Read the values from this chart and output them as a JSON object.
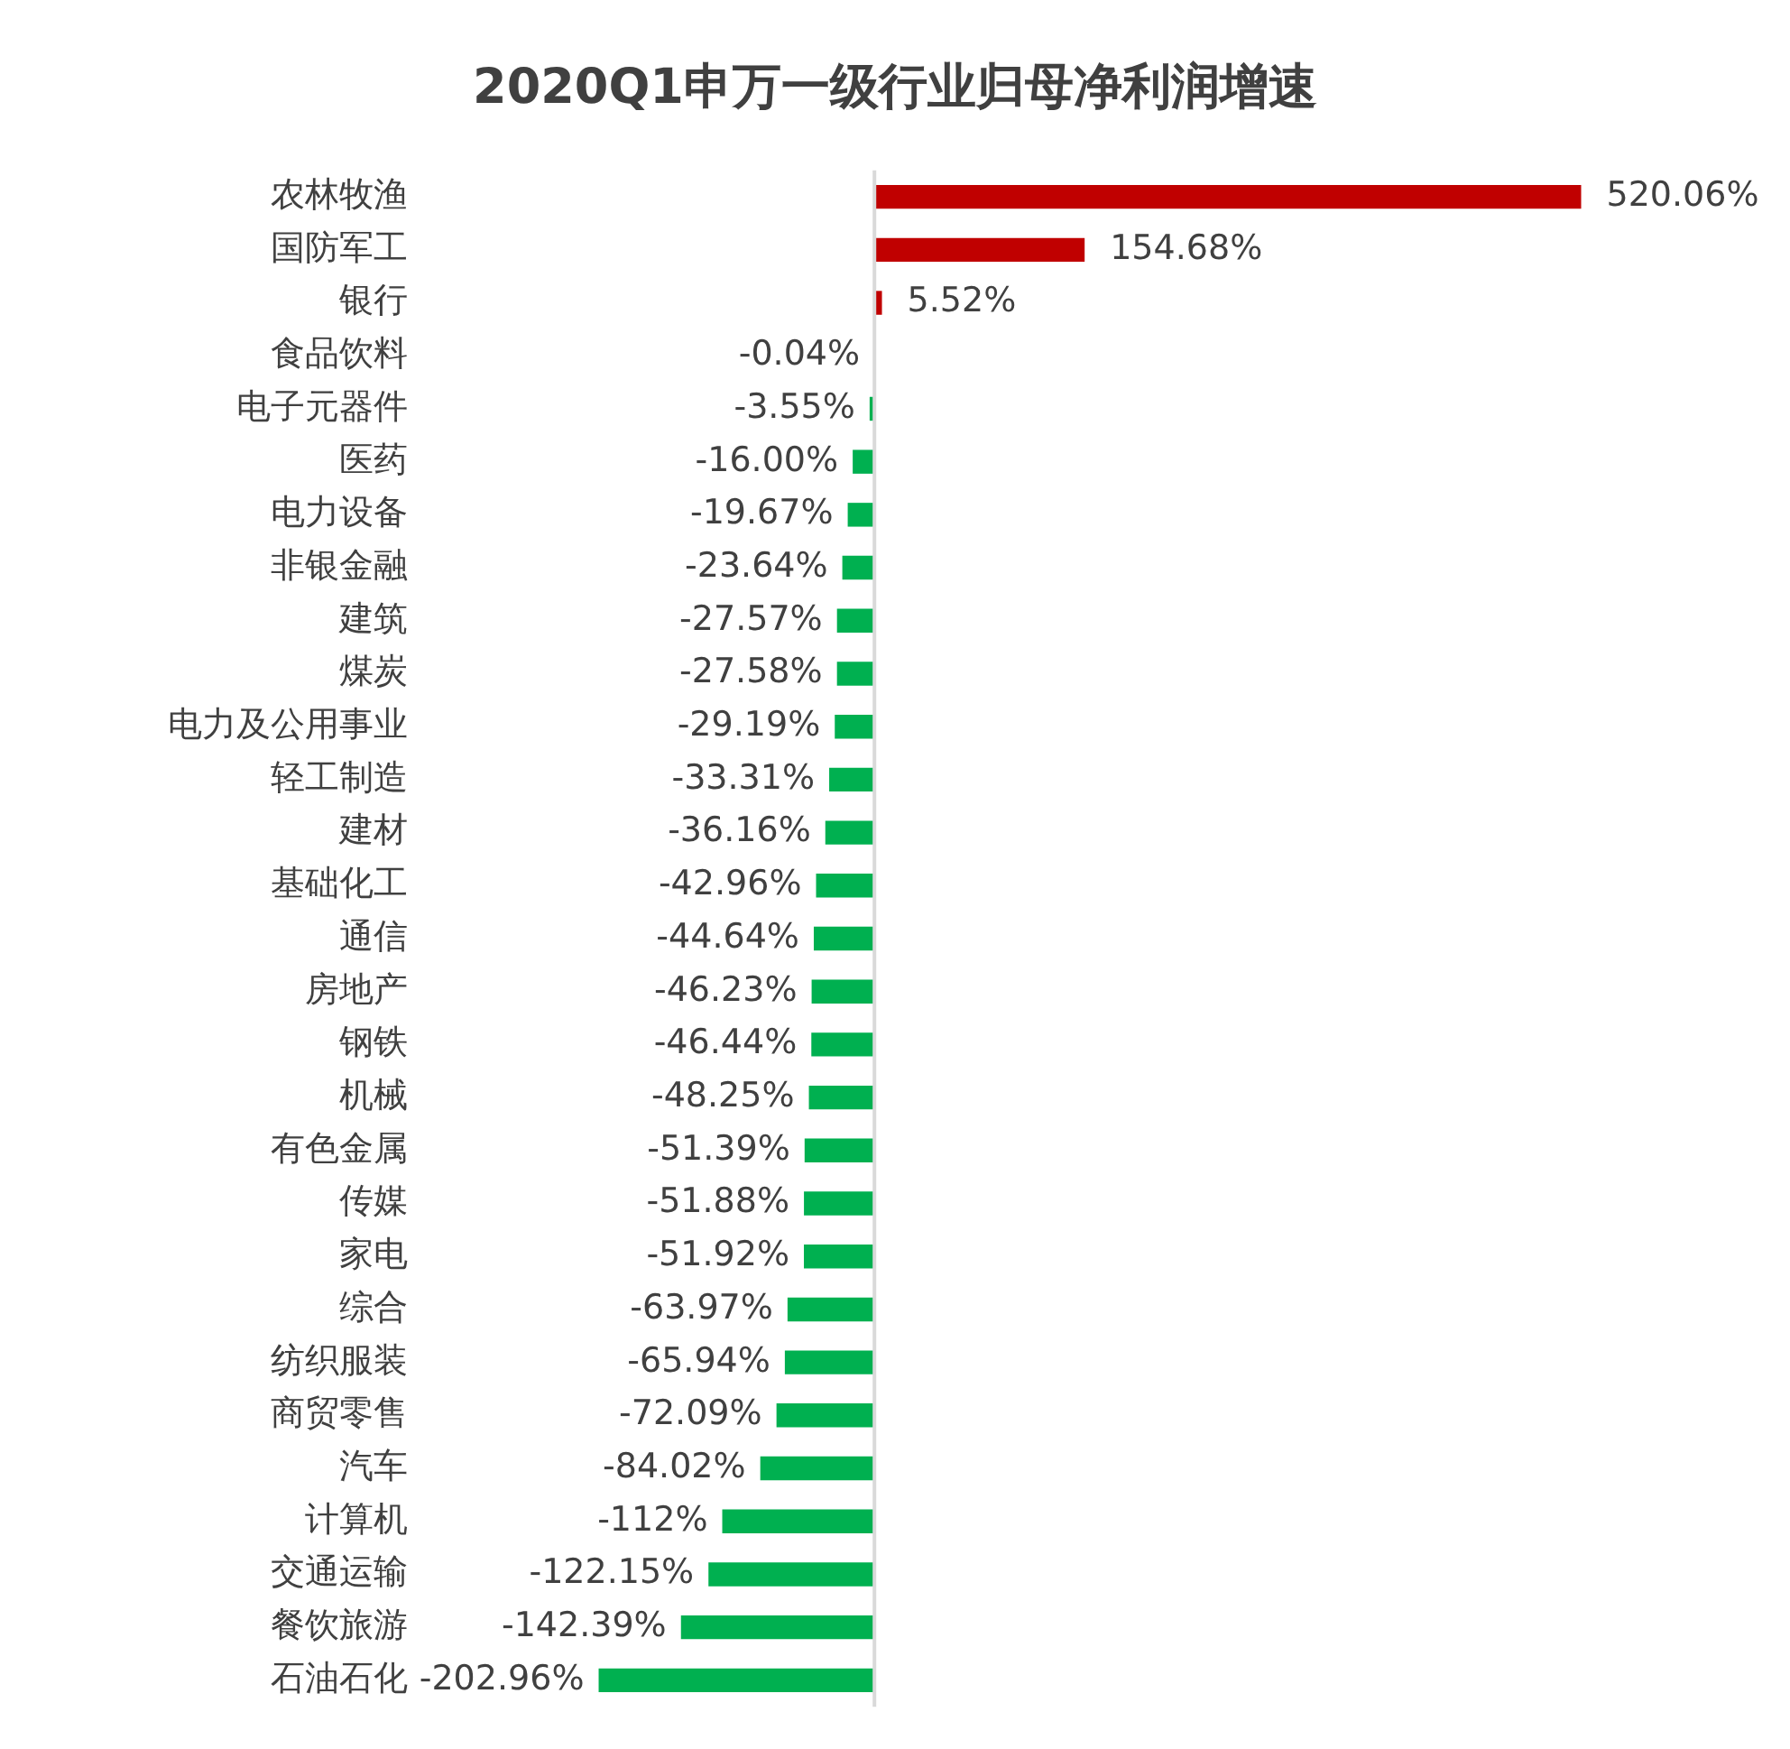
{
  "chart_data": {
    "type": "bar",
    "orientation": "horizontal",
    "title": "2020Q1申万一级行业归母净利润增速",
    "categories": [
      "农林牧渔",
      "国防军工",
      "银行",
      "食品饮料",
      "电子元器件",
      "医药",
      "电力设备",
      "非银金融",
      "建筑",
      "煤炭",
      "电力及公用事业",
      "轻工制造",
      "建材",
      "基础化工",
      "通信",
      "房地产",
      "钢铁",
      "机械",
      "有色金属",
      "传媒",
      "家电",
      "综合",
      "纺织服装",
      "商贸零售",
      "汽车",
      "计算机",
      "交通运输",
      "餐饮旅游",
      "石油石化"
    ],
    "values": [
      520.06,
      154.68,
      5.52,
      -0.04,
      -3.55,
      -16.0,
      -19.67,
      -23.64,
      -27.57,
      -27.58,
      -29.19,
      -33.31,
      -36.16,
      -42.96,
      -44.64,
      -46.23,
      -46.44,
      -48.25,
      -51.39,
      -51.88,
      -51.92,
      -63.97,
      -65.94,
      -72.09,
      -84.02,
      -112,
      -122.15,
      -142.39,
      -202.96
    ],
    "value_labels": [
      "520.06%",
      "154.68%",
      "5.52%",
      "-0.04%",
      "-3.55%",
      "-16.00%",
      "-19.67%",
      "-23.64%",
      "-27.57%",
      "-27.58%",
      "-29.19%",
      "-33.31%",
      "-36.16%",
      "-42.96%",
      "-44.64%",
      "-46.23%",
      "-46.44%",
      "-48.25%",
      "-51.39%",
      "-51.88%",
      "-51.92%",
      "-63.97%",
      "-65.94%",
      "-72.09%",
      "-84.02%",
      "-112%",
      "-122.15%",
      "-142.39%",
      "-202.96%"
    ],
    "colors": [
      "#c00000",
      "#c00000",
      "#c00000",
      "#00b050",
      "#00b050",
      "#00b050",
      "#00b050",
      "#00b050",
      "#00b050",
      "#00b050",
      "#00b050",
      "#00b050",
      "#00b050",
      "#00b050",
      "#00b050",
      "#00b050",
      "#00b050",
      "#00b050",
      "#00b050",
      "#00b050",
      "#00b050",
      "#00b050",
      "#00b050",
      "#00b050",
      "#00b050",
      "#00b050",
      "#00b050",
      "#00b050",
      "#00b050"
    ],
    "legend": false
  }
}
